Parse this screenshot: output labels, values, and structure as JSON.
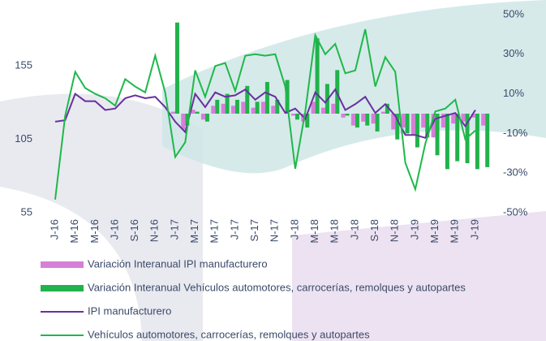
{
  "chart_data": {
    "type": "bar",
    "categories": [
      "J-16",
      null,
      "M-16",
      null,
      "M-16",
      null,
      "J-16",
      null,
      "S-16",
      null,
      "N-16",
      null,
      "J-17",
      null,
      "M-17",
      null,
      "M-17",
      null,
      "J-17",
      null,
      "S-17",
      null,
      "N-17",
      null,
      "J-18",
      null,
      "M-18",
      null,
      "M-18",
      null,
      "J-18",
      null,
      "S-18",
      null,
      "N-18",
      null,
      "J-19",
      null,
      "M-19",
      null,
      "M-19",
      null,
      "J-19",
      null
    ],
    "series": [
      {
        "name": "Variación Interanual IPI manufacturero",
        "type": "bar",
        "axis": "y2",
        "color": "#d67fd8",
        "values": [
          null,
          null,
          null,
          null,
          null,
          null,
          null,
          null,
          null,
          null,
          null,
          null,
          1,
          -8,
          2,
          -3,
          4,
          5,
          4,
          6,
          3,
          6,
          4,
          0,
          -1,
          -4,
          6,
          3,
          5,
          -2,
          -6,
          -4,
          -5,
          1,
          -8,
          -7,
          -11,
          -7,
          -12,
          -7,
          -5,
          -4,
          -2,
          -6
        ]
      },
      {
        "name": "Variación Interanual Vehículos automotores, carrocerías, remolques y autopartes",
        "type": "bar",
        "axis": "y2",
        "color": "#21b24b",
        "values": [
          null,
          null,
          null,
          null,
          null,
          null,
          null,
          null,
          null,
          null,
          null,
          null,
          46,
          -6,
          1,
          -4,
          7,
          10,
          7,
          14,
          6,
          16,
          7,
          17,
          -3,
          -7,
          38,
          15,
          22,
          -1,
          -7,
          -6,
          -9,
          5,
          -13,
          -10,
          -17,
          -12,
          -21,
          -28,
          -24,
          -25,
          -28,
          -27
        ]
      },
      {
        "name": "IPI manufacturero",
        "type": "line",
        "color": "#6a2fa0",
        "values": [
          117,
          118,
          136,
          131,
          131,
          125,
          126,
          133,
          135,
          133,
          134,
          127,
          117,
          110,
          136,
          127,
          137,
          134,
          135,
          139,
          132,
          137,
          134,
          123,
          126,
          119,
          137,
          130,
          139,
          125,
          129,
          134,
          123,
          129,
          121,
          108,
          108,
          106,
          119,
          121,
          123,
          114,
          125,
          null
        ]
      },
      {
        "name": "Vehículos automotores, carrocerías, remolques y autopartes",
        "type": "line",
        "color": "#1fb84a",
        "values": [
          64,
          121,
          151,
          140,
          136,
          133,
          128,
          146,
          141,
          137,
          162,
          137,
          93,
          103,
          152,
          134,
          155,
          157,
          138,
          162,
          163,
          162,
          163,
          141,
          85,
          124,
          176,
          163,
          170,
          150,
          152,
          180,
          141,
          161,
          151,
          89,
          71,
          102,
          124,
          126,
          132,
          105,
          111,
          null
        ]
      }
    ],
    "ylim": [
      55,
      190
    ],
    "yticks": [
      55,
      105,
      155
    ],
    "y2lim": [
      -50,
      50
    ],
    "y2ticks": [
      {
        "value": -50,
        "label": "-50%"
      },
      {
        "value": -30,
        "label": "-30%"
      },
      {
        "value": -10,
        "label": "-10%"
      },
      {
        "value": 10,
        "label": "10%"
      },
      {
        "value": 30,
        "label": "30%"
      },
      {
        "value": 50,
        "label": "50%"
      }
    ]
  }
}
